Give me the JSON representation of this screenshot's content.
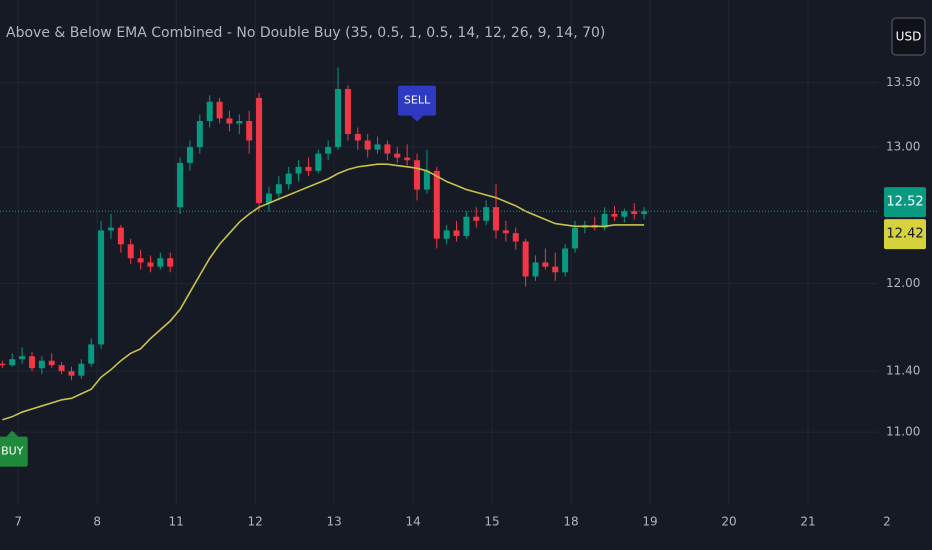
{
  "chart_data": {
    "type": "candlestick",
    "title": "Above & Below EMA Combined - No Double Buy (35, 0.5, 1, 0.5, 14, 12, 26, 9, 14, 70)",
    "currency": "USD",
    "log_scale": true,
    "grid": true,
    "up_color": "#089981",
    "down_color": "#f23645",
    "ema_color": "#c8c14a",
    "x": [
      -0.2,
      -0.075,
      0.05,
      0.175,
      0.3,
      0.425,
      0.55,
      0.675,
      0.8,
      0.925,
      1.05,
      1.175,
      1.3,
      1.425,
      1.55,
      1.675,
      1.8,
      1.925,
      2.05,
      2.175,
      2.3,
      2.425,
      2.55,
      2.675,
      2.8,
      2.925,
      3.05,
      3.175,
      3.3,
      3.425,
      3.55,
      3.675,
      3.8,
      3.925,
      4.05,
      4.175,
      4.3,
      4.425,
      4.55,
      4.675,
      4.8,
      4.925,
      5.05,
      5.175,
      5.3,
      5.425,
      5.55,
      5.675,
      5.8,
      5.925,
      6.05,
      6.175,
      6.3,
      6.425,
      6.55,
      6.675,
      6.8,
      6.925,
      7.05,
      7.175,
      7.3,
      7.425,
      7.55,
      7.675,
      7.8,
      7.925
    ],
    "open": [
      11.45,
      11.44,
      11.48,
      11.5,
      11.42,
      11.47,
      11.44,
      11.4,
      11.37,
      11.45,
      11.58,
      12.38,
      12.4,
      12.28,
      12.18,
      12.15,
      12.12,
      12.18,
      12.55,
      12.88,
      13.0,
      13.2,
      13.35,
      13.22,
      13.18,
      13.2,
      13.38,
      12.58,
      12.65,
      12.72,
      12.8,
      12.85,
      12.82,
      12.95,
      13.0,
      13.45,
      13.1,
      13.05,
      12.98,
      13.02,
      12.95,
      12.92,
      12.9,
      12.68,
      12.82,
      12.32,
      12.38,
      12.34,
      12.48,
      12.45,
      12.55,
      12.38,
      12.36,
      12.3,
      12.05,
      12.15,
      12.12,
      12.08,
      12.25,
      12.4,
      12.42,
      12.4,
      12.5,
      12.48,
      12.52,
      12.5
    ],
    "high": [
      11.47,
      11.52,
      11.56,
      11.53,
      11.5,
      11.52,
      11.46,
      11.43,
      11.48,
      11.62,
      12.45,
      12.5,
      12.42,
      12.32,
      12.24,
      12.2,
      12.22,
      12.22,
      12.92,
      13.05,
      13.25,
      13.4,
      13.38,
      13.28,
      13.25,
      13.28,
      13.42,
      12.7,
      12.78,
      12.85,
      12.9,
      12.92,
      12.98,
      13.05,
      13.62,
      13.48,
      13.15,
      13.1,
      13.08,
      13.05,
      13.0,
      13.02,
      12.95,
      12.98,
      12.85,
      12.42,
      12.45,
      12.52,
      12.55,
      12.6,
      12.72,
      12.45,
      12.4,
      12.32,
      12.2,
      12.25,
      12.22,
      12.28,
      12.45,
      12.45,
      12.48,
      12.55,
      12.56,
      12.54,
      12.58,
      12.55
    ],
    "low": [
      11.42,
      11.43,
      11.45,
      11.4,
      11.38,
      11.42,
      11.38,
      11.34,
      11.35,
      11.43,
      11.55,
      12.32,
      12.22,
      12.14,
      12.1,
      12.08,
      12.1,
      12.08,
      12.5,
      12.82,
      12.95,
      13.15,
      13.18,
      13.12,
      13.1,
      12.95,
      12.52,
      12.52,
      12.6,
      12.68,
      12.74,
      12.78,
      12.8,
      12.9,
      12.98,
      13.05,
      12.98,
      12.92,
      12.95,
      12.9,
      12.88,
      12.86,
      12.6,
      12.65,
      12.25,
      12.28,
      12.3,
      12.32,
      12.4,
      12.42,
      12.32,
      12.3,
      12.24,
      11.98,
      12.02,
      12.1,
      12.02,
      12.05,
      12.22,
      12.36,
      12.38,
      12.38,
      12.45,
      12.44,
      12.46,
      12.46
    ],
    "close": [
      11.44,
      11.48,
      11.5,
      11.42,
      11.47,
      11.44,
      11.4,
      11.37,
      11.45,
      11.58,
      12.38,
      12.4,
      12.28,
      12.18,
      12.15,
      12.12,
      12.18,
      12.12,
      12.88,
      13.0,
      13.2,
      13.35,
      13.22,
      13.18,
      13.2,
      13.05,
      12.58,
      12.65,
      12.72,
      12.8,
      12.85,
      12.82,
      12.95,
      13.0,
      13.45,
      13.1,
      13.05,
      12.98,
      13.02,
      12.95,
      12.92,
      12.9,
      12.68,
      12.82,
      12.32,
      12.38,
      12.34,
      12.48,
      12.45,
      12.55,
      12.38,
      12.36,
      12.3,
      12.05,
      12.15,
      12.12,
      12.08,
      12.25,
      12.4,
      12.42,
      12.4,
      12.5,
      12.48,
      12.52,
      12.5,
      12.52
    ],
    "ema": [
      11.08,
      11.1,
      11.13,
      11.15,
      11.17,
      11.19,
      11.21,
      11.22,
      11.25,
      11.28,
      11.36,
      11.41,
      11.47,
      11.52,
      11.55,
      11.62,
      11.68,
      11.74,
      11.82,
      11.94,
      12.06,
      12.18,
      12.28,
      12.36,
      12.44,
      12.5,
      12.55,
      12.58,
      12.61,
      12.64,
      12.67,
      12.7,
      12.73,
      12.76,
      12.8,
      12.83,
      12.85,
      12.86,
      12.87,
      12.87,
      12.86,
      12.85,
      12.84,
      12.82,
      12.78,
      12.74,
      12.71,
      12.68,
      12.66,
      12.64,
      12.62,
      12.59,
      12.56,
      12.52,
      12.49,
      12.46,
      12.43,
      12.42,
      12.41,
      12.41,
      12.41,
      12.41,
      12.42,
      12.42,
      12.42,
      12.42
    ],
    "annotations": [
      {
        "text": "BUY",
        "x": -0.075,
        "position": "below",
        "color": "#1e8a3a"
      },
      {
        "text": "SELL",
        "x": 5.05,
        "position": "above",
        "color": "#2f3ac2"
      }
    ],
    "ylim": [
      10.54,
      14.17
    ],
    "yticks": [
      {
        "value": 11,
        "label": "11.00"
      },
      {
        "value": 11.4,
        "label": "11.40"
      },
      {
        "value": 12,
        "label": "12.00"
      },
      {
        "value": 13,
        "label": "13.00"
      },
      {
        "value": 13.5,
        "label": "13.50"
      }
    ],
    "xlim": [
      -0.23,
      11.57
    ],
    "xticks": [
      {
        "value": 0,
        "label": "7"
      },
      {
        "value": 1,
        "label": "8"
      },
      {
        "value": 2,
        "label": "11"
      },
      {
        "value": 3,
        "label": "12"
      },
      {
        "value": 4,
        "label": "13"
      },
      {
        "value": 5,
        "label": "14"
      },
      {
        "value": 6,
        "label": "15"
      },
      {
        "value": 7,
        "label": "18"
      },
      {
        "value": 8,
        "label": "19"
      },
      {
        "value": 9,
        "label": "20"
      },
      {
        "value": 10,
        "label": "21"
      },
      {
        "value": 11,
        "label": "2"
      }
    ]
  }
}
